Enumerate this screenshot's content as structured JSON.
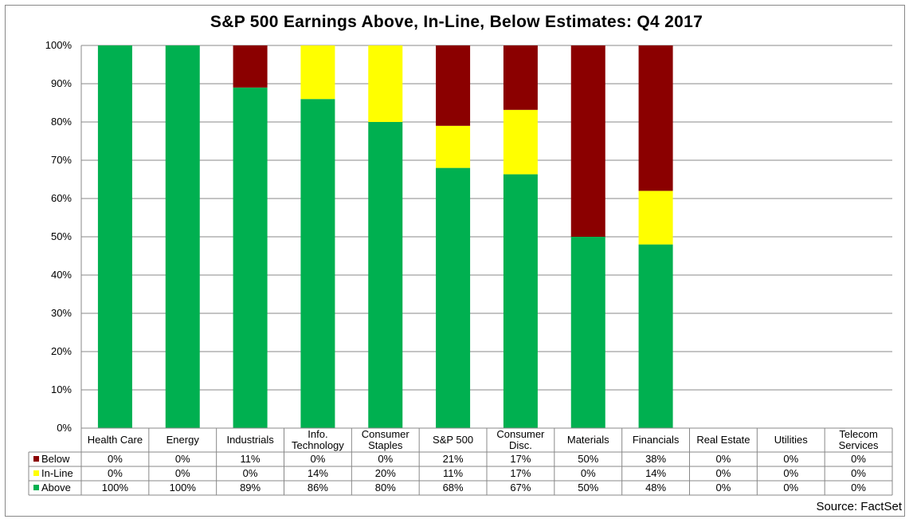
{
  "chart_data": {
    "type": "bar",
    "stacked": true,
    "title": "S&P 500 Earnings Above, In-Line, Below Estimates: Q4 2017",
    "categories": [
      "Health Care",
      "Energy",
      "Industrials",
      "Info. Technology",
      "Consumer Staples",
      "S&P 500",
      "Consumer Disc.",
      "Materials",
      "Financials",
      "Real Estate",
      "Utilities",
      "Telecom Services"
    ],
    "y_tick_labels": [
      "0%",
      "10%",
      "20%",
      "30%",
      "40%",
      "50%",
      "60%",
      "70%",
      "80%",
      "90%",
      "100%"
    ],
    "ylim": [
      0,
      100
    ],
    "grid": true,
    "series": [
      {
        "name": "Below",
        "color": "#8B0000",
        "values": [
          0,
          0,
          11,
          0,
          0,
          21,
          17,
          50,
          38,
          0,
          0,
          0
        ],
        "labels": [
          "0%",
          "0%",
          "11%",
          "0%",
          "0%",
          "21%",
          "17%",
          "50%",
          "38%",
          "0%",
          "0%",
          "0%"
        ]
      },
      {
        "name": "In-Line",
        "color": "#FFFF00",
        "values": [
          0,
          0,
          0,
          14,
          20,
          11,
          17,
          0,
          14,
          0,
          0,
          0
        ],
        "labels": [
          "0%",
          "0%",
          "0%",
          "14%",
          "20%",
          "11%",
          "17%",
          "0%",
          "14%",
          "0%",
          "0%",
          "0%"
        ]
      },
      {
        "name": "Above",
        "color": "#00B050",
        "values": [
          100,
          100,
          89,
          86,
          80,
          68,
          67,
          50,
          48,
          0,
          0,
          0
        ],
        "labels": [
          "100%",
          "100%",
          "89%",
          "86%",
          "80%",
          "68%",
          "67%",
          "50%",
          "48%",
          "0%",
          "0%",
          "0%"
        ]
      }
    ],
    "data_table": true,
    "source": "Source: FactSet"
  }
}
